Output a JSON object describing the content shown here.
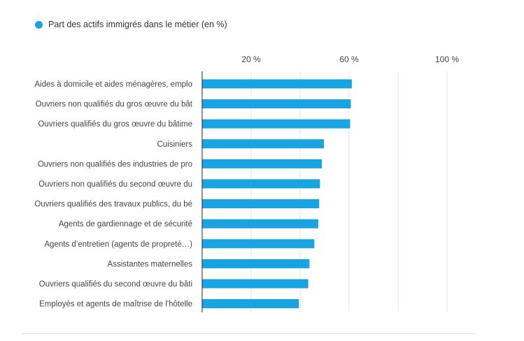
{
  "legend": {
    "label": "Part des actifs immigrés dans le métier (en %)"
  },
  "colors": {
    "bar": "#1aa3e1",
    "grid": "#e6e6e6",
    "axis": "#222222"
  },
  "chart_data": {
    "type": "bar",
    "orientation": "horizontal",
    "series": [
      {
        "name": "Part des actifs immigrés dans le métier (en %)",
        "values": [
          61.1,
          60.7,
          60.4,
          49.7,
          48.9,
          48.1,
          47.8,
          47.4,
          45.8,
          43.8,
          43.3,
          39.5
        ]
      }
    ],
    "categories": [
      "Aides à domicile et aides ménagères, emplo",
      "Ouvriers non qualifiés du gros œuvre du bât",
      "Ouvriers qualifiés du gros œuvre du bâtime",
      "Cuisiniers",
      "Ouvriers non qualifiés des industries de pro",
      "Ouvriers non qualifiés du second œuvre du",
      "Ouvriers qualifiés des travaux publics, du bé",
      "Agents de gardiennage et de sécurité",
      "Agents d’entretien (agents de propreté…)",
      "Assistantes maternelles",
      "Ouvriers qualifiés du second œuvre du bâti",
      "Employés et agents de maîtrise de l'hôtelle"
    ],
    "x_ticks": [
      "20 %",
      "60 %",
      "100 %"
    ],
    "x_tick_values": [
      20,
      60,
      100
    ],
    "xlim": [
      0,
      110
    ],
    "grid": true,
    "legend_position": "top-left"
  }
}
